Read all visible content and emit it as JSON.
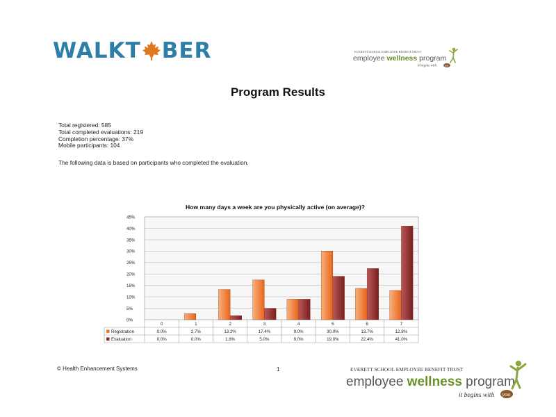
{
  "header": {
    "brand_left": "WALKT",
    "brand_right": "BER",
    "partner_trust": "EVERETT SCHOOL EMPLOYEE BENEFIT TRUST",
    "partner_name_a": "employee ",
    "partner_name_b": "wellness",
    "partner_name_c": " program",
    "partner_tagline_a": "it begins with",
    "partner_tagline_b": "you"
  },
  "page": {
    "title": "Program Results",
    "stats": [
      "Total registered: 585",
      "Total completed evaluations: 219",
      "Completion percentage: 37%",
      "Mobile participants: 104"
    ],
    "note": "The following data is based on participants who completed the evaluation."
  },
  "chart_data": {
    "type": "bar",
    "title": "How many days a week are you physically active (on average)?",
    "categories": [
      "0",
      "1",
      "2",
      "3",
      "4",
      "5",
      "6",
      "7"
    ],
    "series": [
      {
        "name": "Registration",
        "values": [
          0.0,
          2.7,
          13.2,
          17.4,
          9.0,
          30.0,
          13.7,
          12.8
        ],
        "labels": [
          "0.0%",
          "2.7%",
          "13.2%",
          "17.4%",
          "9.0%",
          "30.0%",
          "13.7%",
          "12.8%"
        ],
        "color": "#f07a2c"
      },
      {
        "name": "Evaluation",
        "values": [
          0.0,
          0.0,
          1.8,
          5.0,
          9.0,
          19.0,
          22.4,
          41.0
        ],
        "labels": [
          "0.0%",
          "0.0%",
          "1.8%",
          "5.0%",
          "9.0%",
          "19.0%",
          "22.4%",
          "41.0%"
        ],
        "color": "#8e2a2a"
      }
    ],
    "yticks": [
      "0%",
      "5%",
      "10%",
      "15%",
      "20%",
      "25%",
      "30%",
      "35%",
      "40%",
      "45%"
    ],
    "ylim": [
      0,
      45
    ],
    "grid": true,
    "legend": "data-table"
  },
  "footer": {
    "copyright": "© Health Enhancement Systems",
    "page_number": "1"
  }
}
